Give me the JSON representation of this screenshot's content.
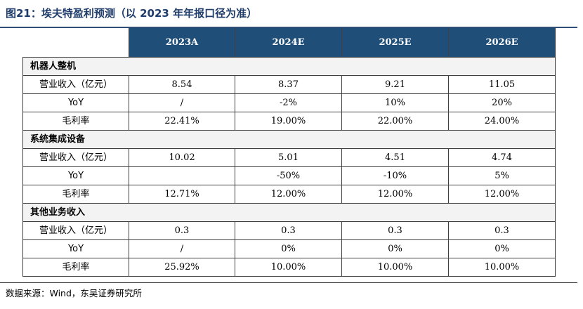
{
  "figure_title": "图21：埃夫特盈利预测（以 2023 年年报口径为准）",
  "columns": [
    "2023A",
    "2024E",
    "2025E",
    "2026E"
  ],
  "sections": [
    {
      "name": "机器人整机",
      "rows": [
        {
          "label": "营业收入（亿元）",
          "values": [
            "8.54",
            "8.37",
            "9.21",
            "11.05"
          ]
        },
        {
          "label": "YoY",
          "values": [
            "/",
            "-2%",
            "10%",
            "20%"
          ]
        },
        {
          "label": "毛利率",
          "values": [
            "22.41%",
            "19.00%",
            "22.00%",
            "24.00%"
          ]
        }
      ]
    },
    {
      "name": "系统集成设备",
      "rows": [
        {
          "label": "营业收入（亿元）",
          "values": [
            "10.02",
            "5.01",
            "4.51",
            "4.74"
          ]
        },
        {
          "label": "YoY",
          "values": [
            "",
            "-50%",
            "-10%",
            "5%"
          ]
        },
        {
          "label": "毛利率",
          "values": [
            "12.71%",
            "12.00%",
            "12.00%",
            "12.00%"
          ]
        }
      ]
    },
    {
      "name": "其他业务收入",
      "rows": [
        {
          "label": "营业收入（亿元）",
          "values": [
            "0.3",
            "0.3",
            "0.3",
            "0.3"
          ]
        },
        {
          "label": "YoY",
          "values": [
            "/",
            "0%",
            "0%",
            "0%"
          ]
        },
        {
          "label": "毛利率",
          "values": [
            "25.92%",
            "10.00%",
            "10.00%",
            "10.00%"
          ]
        }
      ]
    }
  ],
  "source": "数据来源：Wind，东吴证券研究所",
  "colors": {
    "header_bg": "#1f4e79",
    "title_text": "#1f3c6b"
  }
}
